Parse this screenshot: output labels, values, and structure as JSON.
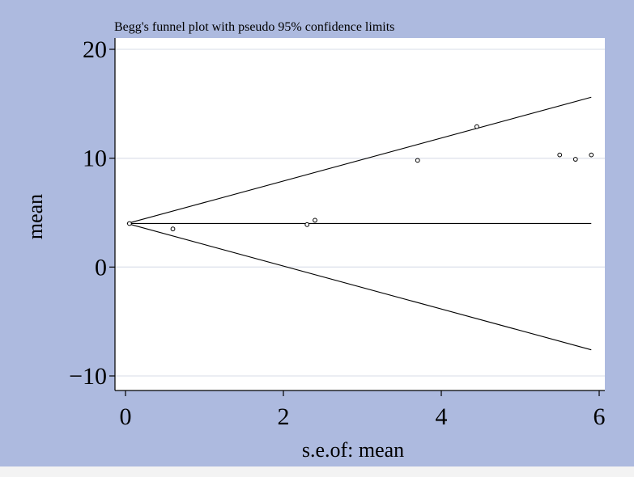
{
  "chart_data": {
    "type": "scatter",
    "title": "Begg's funnel plot with pseudo 95% confidence limits",
    "xlabel": "s.e.of: mean",
    "ylabel": "mean",
    "xlim": [
      0,
      6
    ],
    "ylim": [
      -10,
      20
    ],
    "xticks": [
      {
        "value": 0,
        "label": "0"
      },
      {
        "value": 2,
        "label": "2"
      },
      {
        "value": 4,
        "label": "4"
      },
      {
        "value": 6,
        "label": "6"
      }
    ],
    "yticks": [
      {
        "value": -10,
        "label": "−10"
      },
      {
        "value": 0,
        "label": "0"
      },
      {
        "value": 10,
        "label": "10"
      },
      {
        "value": 20,
        "label": "20"
      }
    ],
    "grid": "horizontal",
    "pooled_estimate": 4.0,
    "funnel": {
      "x_start": 0.02,
      "x_end": 5.9,
      "upper_end": 15.6,
      "lower_end": -7.6
    },
    "points": [
      {
        "x": 0.05,
        "y": 4.0
      },
      {
        "x": 0.6,
        "y": 3.5
      },
      {
        "x": 2.3,
        "y": 3.9
      },
      {
        "x": 2.4,
        "y": 4.3
      },
      {
        "x": 3.7,
        "y": 9.8
      },
      {
        "x": 4.45,
        "y": 12.9
      },
      {
        "x": 5.5,
        "y": 10.3
      },
      {
        "x": 5.7,
        "y": 9.9
      },
      {
        "x": 5.9,
        "y": 10.3
      }
    ],
    "colors": {
      "outer_background": "#adbadf",
      "plot_background": "#ffffff",
      "grid": "#dfe3ec",
      "ink": "#000000"
    }
  }
}
